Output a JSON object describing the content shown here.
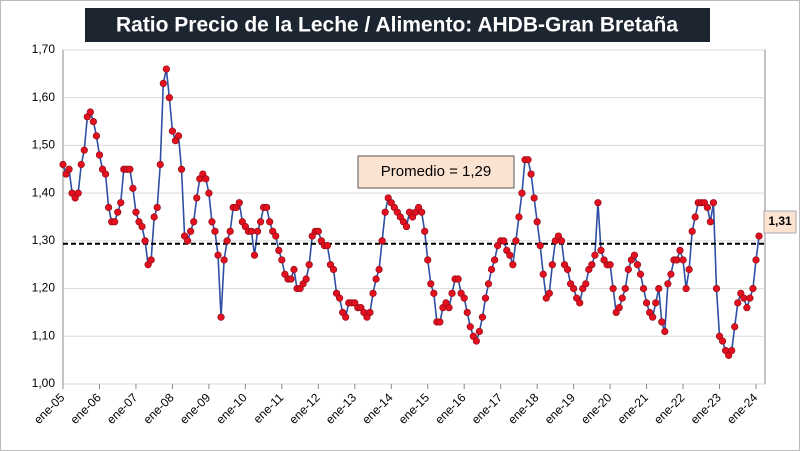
{
  "chart_data": {
    "type": "line",
    "title": "Ratio Precio de la  Leche / Alimento: AHDB-Gran Bretaña",
    "categories": [
      "ene-05",
      null,
      null,
      null,
      null,
      null,
      null,
      null,
      null,
      null,
      null,
      null,
      "ene-06",
      null,
      null,
      null,
      null,
      null,
      null,
      null,
      null,
      null,
      null,
      null,
      "ene-07",
      null,
      null,
      null,
      null,
      null,
      null,
      null,
      null,
      null,
      null,
      null,
      "ene-08",
      null,
      null,
      null,
      null,
      null,
      null,
      null,
      null,
      null,
      null,
      null,
      "ene-09",
      null,
      null,
      null,
      null,
      null,
      null,
      null,
      null,
      null,
      null,
      null,
      "ene-10",
      null,
      null,
      null,
      null,
      null,
      null,
      null,
      null,
      null,
      null,
      null,
      "ene-11",
      null,
      null,
      null,
      null,
      null,
      null,
      null,
      null,
      null,
      null,
      null,
      "ene-12",
      null,
      null,
      null,
      null,
      null,
      null,
      null,
      null,
      null,
      null,
      null,
      "ene-13",
      null,
      null,
      null,
      null,
      null,
      null,
      null,
      null,
      null,
      null,
      null,
      "ene-14",
      null,
      null,
      null,
      null,
      null,
      null,
      null,
      null,
      null,
      null,
      null,
      "ene-15",
      null,
      null,
      null,
      null,
      null,
      null,
      null,
      null,
      null,
      null,
      null,
      "ene-16",
      null,
      null,
      null,
      null,
      null,
      null,
      null,
      null,
      null,
      null,
      null,
      "ene-17",
      null,
      null,
      null,
      null,
      null,
      null,
      null,
      null,
      null,
      null,
      null,
      "ene-18",
      null,
      null,
      null,
      null,
      null,
      null,
      null,
      null,
      null,
      null,
      null,
      "ene-19",
      null,
      null,
      null,
      null,
      null,
      null,
      null,
      null,
      null,
      null,
      null,
      "ene-20",
      null,
      null,
      null,
      null,
      null,
      null,
      null,
      null,
      null,
      null,
      null,
      "ene-21",
      null,
      null,
      null,
      null,
      null,
      null,
      null,
      null,
      null,
      null,
      null,
      "ene-22",
      null,
      null,
      null,
      null,
      null,
      null,
      null,
      null,
      null,
      null,
      null,
      "ene-23",
      null,
      null,
      null,
      null,
      null,
      null,
      null,
      null,
      null,
      null,
      null,
      "ene-24",
      null
    ],
    "values": [
      1.46,
      1.44,
      1.45,
      1.4,
      1.39,
      1.4,
      1.46,
      1.49,
      1.56,
      1.57,
      1.55,
      1.52,
      1.48,
      1.45,
      1.44,
      1.37,
      1.34,
      1.34,
      1.36,
      1.38,
      1.45,
      1.45,
      1.45,
      1.41,
      1.36,
      1.34,
      1.33,
      1.3,
      1.25,
      1.26,
      1.35,
      1.37,
      1.46,
      1.63,
      1.66,
      1.6,
      1.53,
      1.51,
      1.52,
      1.45,
      1.31,
      1.3,
      1.32,
      1.34,
      1.39,
      1.43,
      1.44,
      1.43,
      1.4,
      1.34,
      1.32,
      1.27,
      1.14,
      1.26,
      1.3,
      1.32,
      1.37,
      1.37,
      1.38,
      1.34,
      1.33,
      1.32,
      1.32,
      1.27,
      1.32,
      1.34,
      1.37,
      1.37,
      1.34,
      1.32,
      1.31,
      1.28,
      1.26,
      1.23,
      1.22,
      1.22,
      1.24,
      1.2,
      1.2,
      1.21,
      1.22,
      1.25,
      1.31,
      1.32,
      1.32,
      1.3,
      1.29,
      1.29,
      1.25,
      1.24,
      1.19,
      1.18,
      1.15,
      1.14,
      1.17,
      1.17,
      1.17,
      1.16,
      1.16,
      1.15,
      1.14,
      1.15,
      1.19,
      1.22,
      1.24,
      1.3,
      1.36,
      1.39,
      1.38,
      1.37,
      1.36,
      1.35,
      1.34,
      1.33,
      1.36,
      1.35,
      1.36,
      1.37,
      1.36,
      1.32,
      1.26,
      1.21,
      1.19,
      1.13,
      1.13,
      1.16,
      1.17,
      1.16,
      1.19,
      1.22,
      1.22,
      1.19,
      1.18,
      1.15,
      1.12,
      1.1,
      1.09,
      1.11,
      1.14,
      1.18,
      1.21,
      1.24,
      1.26,
      1.29,
      1.3,
      1.3,
      1.28,
      1.27,
      1.25,
      1.3,
      1.35,
      1.4,
      1.47,
      1.47,
      1.44,
      1.39,
      1.34,
      1.29,
      1.23,
      1.18,
      1.19,
      1.25,
      1.3,
      1.31,
      1.3,
      1.25,
      1.24,
      1.21,
      1.2,
      1.18,
      1.17,
      1.2,
      1.21,
      1.24,
      1.25,
      1.27,
      1.38,
      1.28,
      1.26,
      1.25,
      1.25,
      1.2,
      1.15,
      1.16,
      1.18,
      1.2,
      1.24,
      1.26,
      1.27,
      1.25,
      1.23,
      1.2,
      1.17,
      1.15,
      1.14,
      1.17,
      1.2,
      1.13,
      1.11,
      1.21,
      1.23,
      1.26,
      1.26,
      1.28,
      1.26,
      1.2,
      1.24,
      1.32,
      1.35,
      1.38,
      1.38,
      1.38,
      1.37,
      1.34,
      1.38,
      1.2,
      1.1,
      1.09,
      1.07,
      1.06,
      1.07,
      1.12,
      1.17,
      1.19,
      1.18,
      1.16,
      1.18,
      1.2,
      1.26,
      1.31
    ],
    "color": "#2e4fa3",
    "marker_color": "#e3101f",
    "ylim": [
      1.0,
      1.7
    ],
    "yticks": [
      {
        "value": 1.0,
        "label": "1,00"
      },
      {
        "value": 1.1,
        "label": "1,10"
      },
      {
        "value": 1.2,
        "label": "1,20"
      },
      {
        "value": 1.3,
        "label": "1,30"
      },
      {
        "value": 1.4,
        "label": "1,40"
      },
      {
        "value": 1.5,
        "label": "1,50"
      },
      {
        "value": 1.6,
        "label": "1,60"
      },
      {
        "value": 1.7,
        "label": "1,70"
      }
    ],
    "grid": true,
    "average": {
      "value": 1.294,
      "label": "Promedio =  1,29"
    },
    "end_label": "1,31"
  }
}
